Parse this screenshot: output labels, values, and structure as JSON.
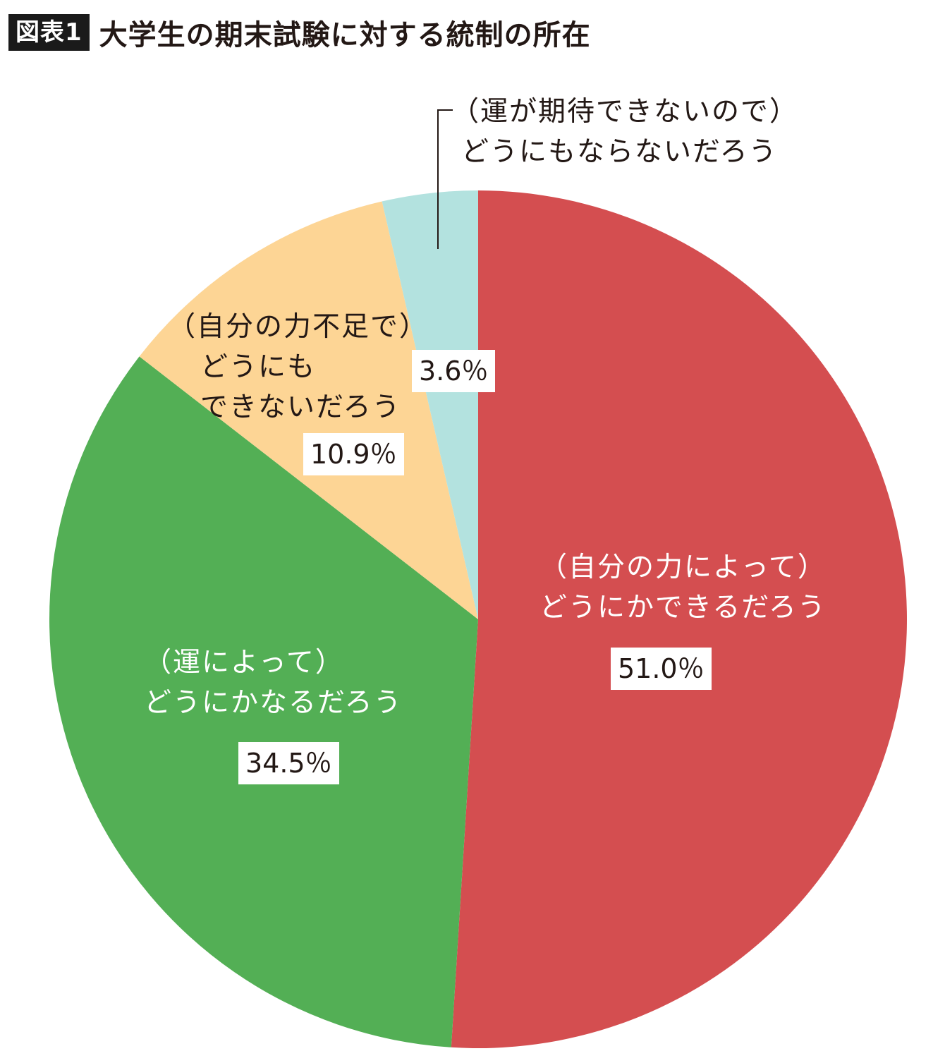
{
  "header": {
    "figure_label": "図表1",
    "title": "大学生の期末試験に対する統制の所在"
  },
  "chart_data": {
    "type": "pie",
    "start": "12 o'clock",
    "direction": "clockwise",
    "slices": [
      {
        "label_line1": "（自分の力によって）",
        "label_line2": "どうにかできるだろう",
        "label_line3": "",
        "value": 51.0,
        "value_label": "51.0％",
        "color": "#d44e50"
      },
      {
        "label_line1": "（運によって）",
        "label_line2": "どうにかなるだろう",
        "label_line3": "",
        "value": 34.5,
        "value_label": "34.5％",
        "color": "#53af55"
      },
      {
        "label_line1": "（自分の力不足で）",
        "label_line2": "どうにも",
        "label_line3": "できないだろう",
        "value": 10.9,
        "value_label": "10.9％",
        "color": "#fdd595"
      },
      {
        "label_line1": "（運が期待できないので）",
        "label_line2": "どうにもならないだろう",
        "label_line3": "",
        "value": 3.6,
        "value_label": "3.6％",
        "color": "#b3e2df"
      }
    ]
  }
}
